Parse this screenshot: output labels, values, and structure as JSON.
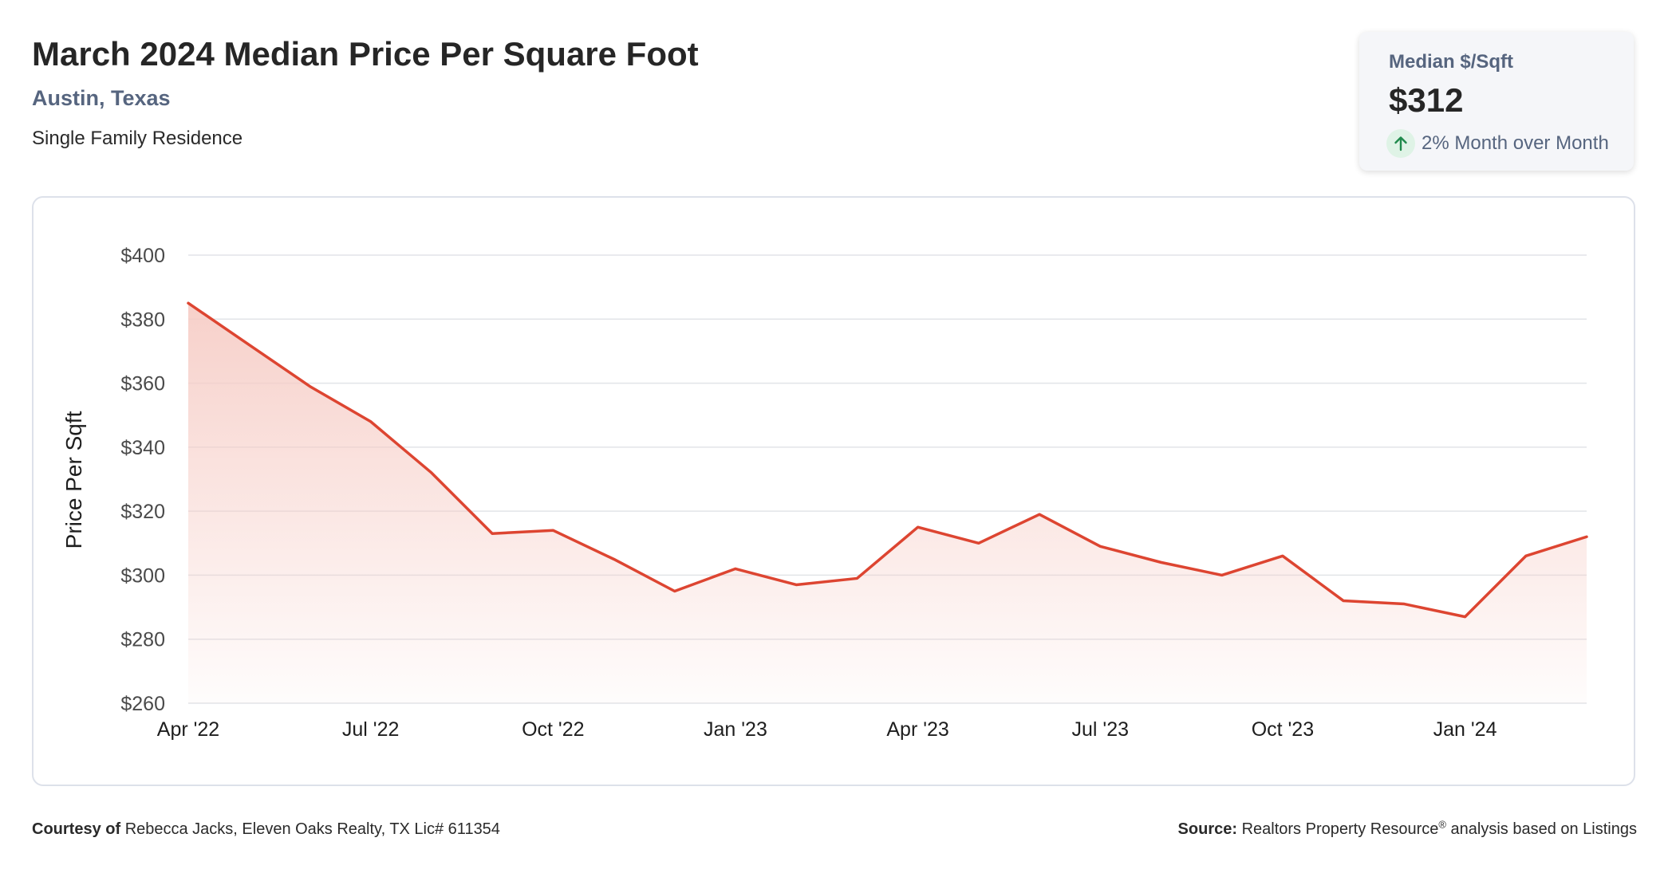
{
  "header": {
    "title": "March 2024 Median Price Per Square Foot",
    "location": "Austin, Texas",
    "property_type": "Single Family Residence"
  },
  "stat_card": {
    "label": "Median $/Sqft",
    "value": "$312",
    "change": "2% Month over Month",
    "change_icon": "arrow-up-icon",
    "change_color": "#1f8a4c"
  },
  "colors": {
    "line": "#dd4531",
    "area_top": "#f6cbc4",
    "grid": "#e2e4e8",
    "tick_text": "#4a4a4a"
  },
  "chart_data": {
    "type": "area",
    "ylabel": "Price Per Sqft",
    "xlabel": "",
    "ylim": [
      260,
      400
    ],
    "y_ticks": [
      {
        "value": 260,
        "label": "$260"
      },
      {
        "value": 280,
        "label": "$280"
      },
      {
        "value": 300,
        "label": "$300"
      },
      {
        "value": 320,
        "label": "$320"
      },
      {
        "value": 340,
        "label": "$340"
      },
      {
        "value": 360,
        "label": "$360"
      },
      {
        "value": 380,
        "label": "$380"
      },
      {
        "value": 400,
        "label": "$400"
      }
    ],
    "x_ticks": [
      "Apr '22",
      "Jul '22",
      "Oct '22",
      "Jan '23",
      "Apr '23",
      "Jul '23",
      "Oct '23",
      "Jan '24"
    ],
    "grid": true,
    "series": [
      {
        "x": [
          "2022-04",
          "2022-05",
          "2022-06",
          "2022-07",
          "2022-08",
          "2022-09",
          "2022-10",
          "2022-11",
          "2022-12",
          "2023-01",
          "2023-02",
          "2023-03",
          "2023-04",
          "2023-05",
          "2023-06",
          "2023-07",
          "2023-08",
          "2023-09",
          "2023-10",
          "2023-11",
          "2023-12",
          "2024-01",
          "2024-02",
          "2024-03"
        ],
        "values": [
          385,
          372,
          359,
          348,
          332,
          313,
          314,
          305,
          295,
          302,
          297,
          299,
          315,
          310,
          319,
          309,
          304,
          300,
          306,
          292,
          291,
          287,
          306,
          312
        ]
      }
    ]
  },
  "footer": {
    "courtesy_label": "Courtesy of",
    "courtesy_text": "Rebecca Jacks, Eleven Oaks Realty, TX Lic# 611354",
    "source_label": "Source:",
    "source_name": "Realtors Property Resource",
    "source_mark": "®",
    "source_rest": "analysis based on Listings"
  }
}
